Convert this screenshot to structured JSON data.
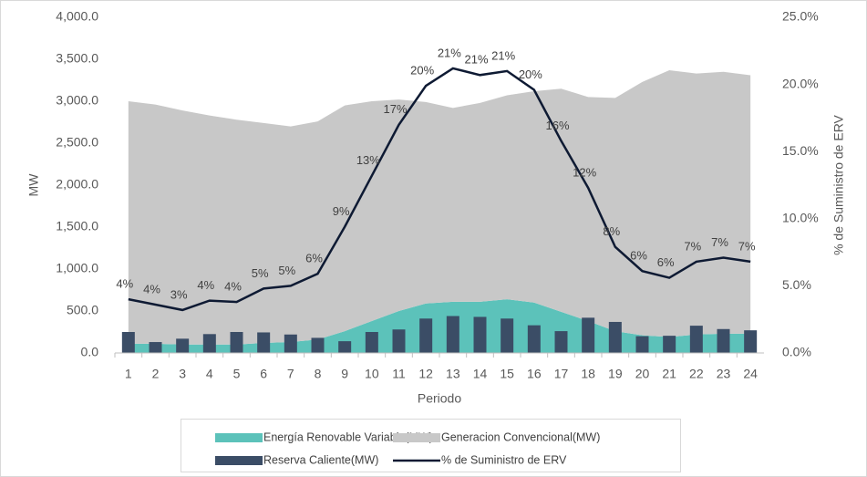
{
  "chart_data": {
    "type": "combo",
    "categories": [
      "1",
      "2",
      "3",
      "4",
      "5",
      "6",
      "7",
      "8",
      "9",
      "10",
      "11",
      "12",
      "13",
      "14",
      "15",
      "16",
      "17",
      "18",
      "19",
      "20",
      "21",
      "22",
      "23",
      "24"
    ],
    "ylabel": "MW",
    "y2label": "% de Suministro de ERV",
    "xlabel": "Periodo",
    "ylim": [
      0,
      4000
    ],
    "yticks": [
      {
        "value": 0,
        "label": "0.0"
      },
      {
        "value": 500,
        "label": "500.0"
      },
      {
        "value": 1000,
        "label": "1,000.0"
      },
      {
        "value": 1500,
        "label": "1,500.0"
      },
      {
        "value": 2000,
        "label": "2,000.0"
      },
      {
        "value": 2500,
        "label": "2,500.0"
      },
      {
        "value": 3000,
        "label": "3,000.0"
      },
      {
        "value": 3500,
        "label": "3,500.0"
      },
      {
        "value": 4000,
        "label": "4,000.0"
      }
    ],
    "y2lim": [
      0,
      25
    ],
    "y2ticks": [
      {
        "value": 0,
        "label": "0.0%"
      },
      {
        "value": 5,
        "label": "5.0%"
      },
      {
        "value": 10,
        "label": "10.0%"
      },
      {
        "value": 15,
        "label": "15.0%"
      },
      {
        "value": 20,
        "label": "20.0%"
      },
      {
        "value": 25,
        "label": "25.0%"
      }
    ],
    "grid": false,
    "legend": "bottom",
    "series": [
      {
        "name": "Energía Renovable Variable(MW)",
        "kind": "area",
        "color": "#5cc2ba",
        "values": [
          110,
          110,
          100,
          100,
          100,
          120,
          130,
          160,
          260,
          380,
          500,
          590,
          610,
          610,
          640,
          600,
          490,
          380,
          260,
          210,
          190,
          220,
          230,
          230
        ]
      },
      {
        "name": "Generacion Convencional(MW)",
        "kind": "area",
        "color": "#c8c8c8",
        "values": [
          2890,
          2850,
          2790,
          2730,
          2680,
          2620,
          2570,
          2600,
          2690,
          2620,
          2520,
          2400,
          2310,
          2370,
          2430,
          2520,
          2660,
          2670,
          2780,
          3020,
          3180,
          3110,
          3120,
          3080
        ]
      },
      {
        "name": "Reserva Caliente(MW)",
        "kind": "bar",
        "color": "#3b4d66",
        "values": [
          250,
          130,
          170,
          225,
          250,
          245,
          220,
          180,
          140,
          250,
          280,
          410,
          440,
          430,
          410,
          330,
          260,
          420,
          370,
          200,
          205,
          325,
          285,
          270
        ]
      },
      {
        "name": "% de Suministro de ERV",
        "kind": "line",
        "color": "#0e1a33",
        "axis": "y2",
        "values": [
          4.0,
          3.6,
          3.2,
          3.9,
          3.8,
          4.8,
          5.0,
          5.9,
          9.4,
          13.2,
          17.0,
          19.9,
          21.2,
          20.7,
          21.0,
          19.6,
          15.8,
          12.3,
          7.9,
          6.1,
          5.6,
          6.8,
          7.1,
          6.8
        ],
        "value_labels": [
          "4%",
          "4%",
          "3%",
          "4%",
          "4%",
          "5%",
          "5%",
          "6%",
          "9%",
          "13%",
          "17%",
          "20%",
          "21%",
          "21%",
          "21%",
          "20%",
          "16%",
          "12%",
          "8%",
          "6%",
          "6%",
          "7%",
          "7%",
          "7%"
        ]
      }
    ]
  }
}
